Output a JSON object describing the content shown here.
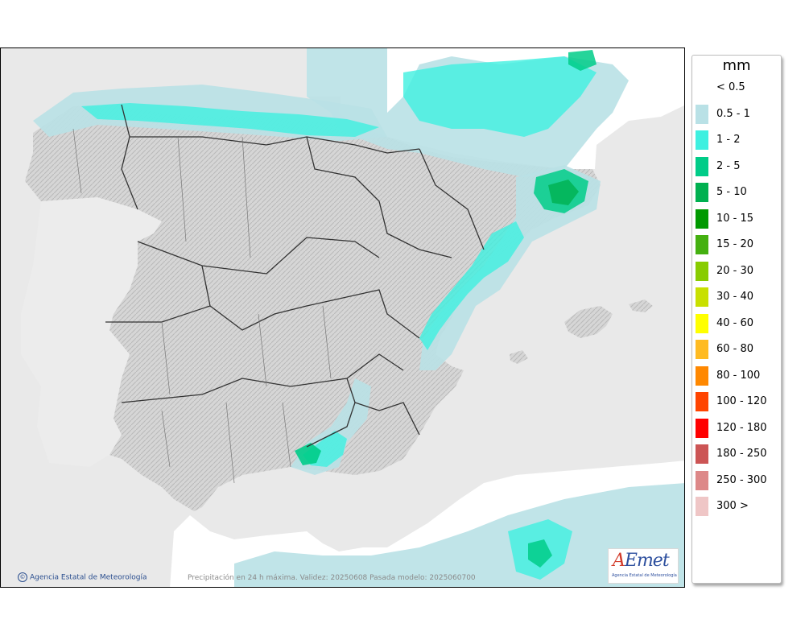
{
  "legend": {
    "unit": "mm",
    "classes": [
      {
        "label": "< 0.5",
        "color": "#ffffff"
      },
      {
        "label": "0.5 - 1",
        "color": "#b9e1e6"
      },
      {
        "label": "1 - 2",
        "color": "#3ef0e0"
      },
      {
        "label": "2 - 5",
        "color": "#00cc88"
      },
      {
        "label": "5 - 10",
        "color": "#00b050"
      },
      {
        "label": "10 - 15",
        "color": "#009900"
      },
      {
        "label": "15 - 20",
        "color": "#44b010"
      },
      {
        "label": "20 - 30",
        "color": "#88cc00"
      },
      {
        "label": "30 - 40",
        "color": "#c8e000"
      },
      {
        "label": "40 - 60",
        "color": "#ffff00"
      },
      {
        "label": "60 - 80",
        "color": "#ffbb22"
      },
      {
        "label": "80 - 100",
        "color": "#ff8800"
      },
      {
        "label": "100 - 120",
        "color": "#ff4400"
      },
      {
        "label": "120 - 180",
        "color": "#ff0000"
      },
      {
        "label": "180 - 250",
        "color": "#cc5555"
      },
      {
        "label": "250 - 300",
        "color": "#dd8888"
      },
      {
        "label": "300 >",
        "color": "#efc6c6"
      }
    ]
  },
  "footer": {
    "copyright": "Agencia Estatal de Meteorología",
    "caption": "Precipitación en 24 h máxima. Validez: 20250608 Pasada modelo: 2025060700"
  },
  "logo": {
    "word_a": "A",
    "word_rest": "Emet",
    "subtitle": "Agencia Estatal de Meteorología"
  },
  "colors": {
    "sea": "#e6e6e6",
    "land": "#d8d8d8",
    "border": "#3a3a3a",
    "precip_light": "#b9e1e6",
    "precip_mid": "#3ef0e0",
    "precip_heavy": "#00cc88",
    "precip_max": "#00b050"
  }
}
